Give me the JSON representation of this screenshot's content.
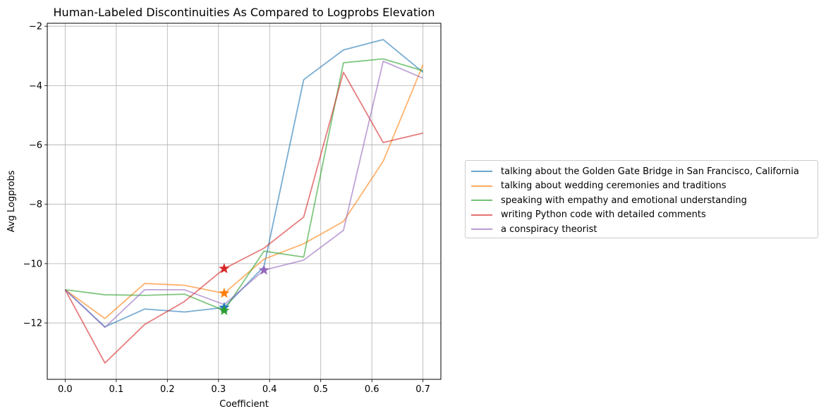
{
  "chart_data": {
    "type": "line",
    "title": "Human-Labeled Discontinuities As Compared to Logprobs Elevation",
    "xlabel": "Coefficient",
    "ylabel": "Avg Logprobs",
    "xlim": [
      -0.035,
      0.735
    ],
    "ylim": [
      -13.9,
      -1.9
    ],
    "xticks": [
      0.0,
      0.1,
      0.2,
      0.3,
      0.4,
      0.5,
      0.6,
      0.7
    ],
    "xtick_labels": [
      "0.0",
      "0.1",
      "0.2",
      "0.3",
      "0.4",
      "0.5",
      "0.6",
      "0.7"
    ],
    "yticks": [
      -12,
      -10,
      -8,
      -6,
      -4,
      -2
    ],
    "ytick_labels": [
      "−12",
      "−10",
      "−8",
      "−6",
      "−4",
      "−2"
    ],
    "grid": true,
    "legend_position": "right-outside",
    "x": [
      0.0,
      0.0778,
      0.1556,
      0.2333,
      0.3111,
      0.3889,
      0.4667,
      0.5444,
      0.6222,
      0.7
    ],
    "series": [
      {
        "name": "talking about the Golden Gate Bridge in San Francisco, California",
        "color": "#1f77b4",
        "values": [
          -10.88,
          -12.13,
          -11.53,
          -11.63,
          -11.48,
          -10.1,
          -3.8,
          -2.8,
          -2.45,
          -3.55
        ],
        "marker": {
          "x": 0.3111,
          "y": -11.48
        }
      },
      {
        "name": "talking about wedding ceremonies and traditions",
        "color": "#ff7f0e",
        "values": [
          -10.88,
          -11.85,
          -10.67,
          -10.73,
          -11.0,
          -9.85,
          -9.33,
          -8.58,
          -6.55,
          -3.3
        ],
        "marker": {
          "x": 0.3111,
          "y": -11.0
        }
      },
      {
        "name": "speaking with empathy and emotional understanding",
        "color": "#2ca02c",
        "values": [
          -10.88,
          -11.05,
          -11.07,
          -11.03,
          -11.58,
          -9.58,
          -9.78,
          -3.23,
          -3.1,
          -3.5
        ],
        "marker": {
          "x": 0.3111,
          "y": -11.58
        }
      },
      {
        "name": "writing Python code with detailed comments",
        "color": "#d62728",
        "values": [
          -10.88,
          -13.35,
          -12.05,
          -11.28,
          -10.17,
          -9.48,
          -8.43,
          -3.55,
          -5.92,
          -5.6
        ],
        "marker": {
          "x": 0.3111,
          "y": -10.17
        }
      },
      {
        "name": "a conspiracy theorist",
        "color": "#9467bd",
        "values": [
          -10.88,
          -12.15,
          -10.88,
          -10.88,
          -11.38,
          -10.22,
          -9.88,
          -8.88,
          -3.18,
          -3.75
        ],
        "marker": {
          "x": 0.3889,
          "y": -10.22
        }
      }
    ]
  }
}
